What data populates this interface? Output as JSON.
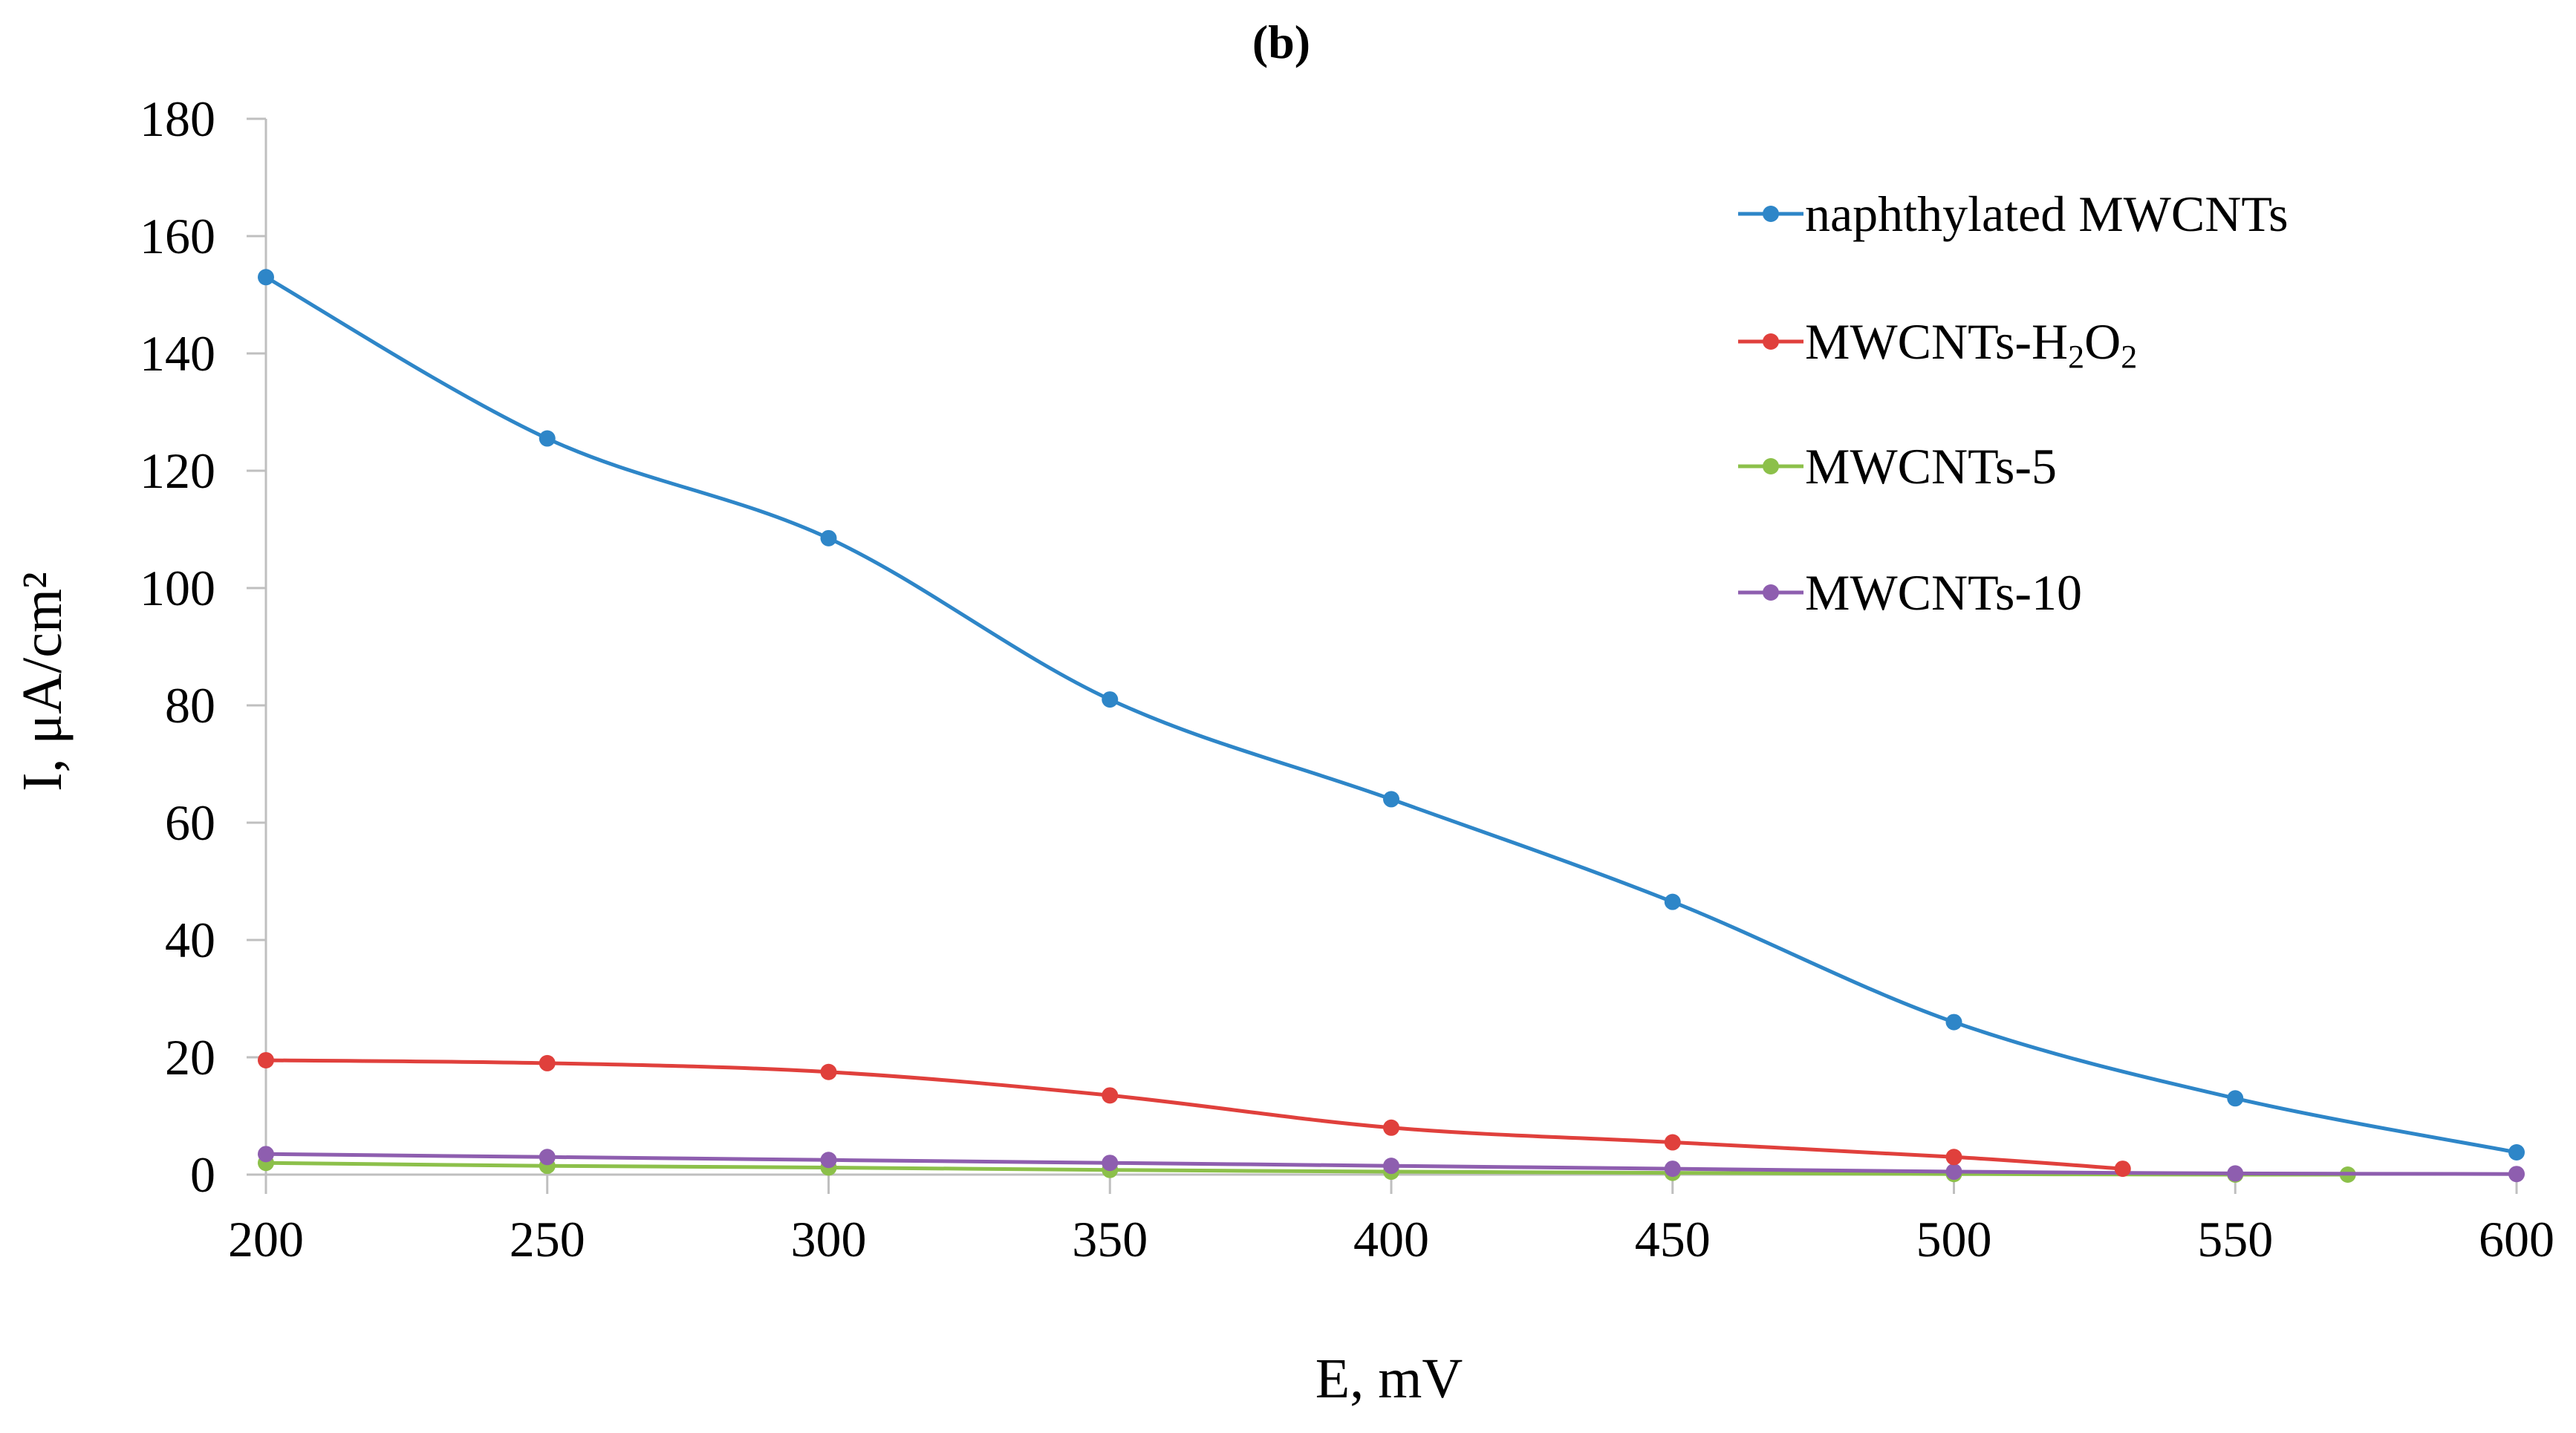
{
  "chart_data": {
    "type": "line",
    "title": "(b)",
    "xlabel": "E, mV",
    "ylabel": "I, μA/cm²",
    "xlim": [
      200,
      600
    ],
    "ylim": [
      0,
      180
    ],
    "x_ticks": [
      200,
      250,
      300,
      350,
      400,
      450,
      500,
      550,
      600
    ],
    "y_ticks": [
      0,
      20,
      40,
      60,
      80,
      100,
      120,
      140,
      160,
      180
    ],
    "grid": false,
    "legend_position": "top-right",
    "series": [
      {
        "name": "naphthylated MWCNTs",
        "color": "#2E86C8",
        "x": [
          200,
          250,
          300,
          350,
          400,
          450,
          500,
          550,
          600
        ],
        "y": [
          153,
          125.5,
          108.5,
          81,
          64,
          46.5,
          26,
          13,
          3.8
        ]
      },
      {
        "name": "MWCNTs-H2O2",
        "label_main": "MWCNTs-H",
        "label_sub1": "2",
        "label_mid": "O",
        "label_sub2": "2",
        "color": "#E0403C",
        "x": [
          200,
          250,
          300,
          350,
          400,
          450,
          500,
          530
        ],
        "y": [
          19.5,
          19,
          17.5,
          13.5,
          8,
          5.5,
          3,
          1
        ]
      },
      {
        "name": "MWCNTs-5",
        "color": "#8CC04A",
        "x": [
          200,
          250,
          300,
          350,
          400,
          450,
          500,
          550,
          570
        ],
        "y": [
          2,
          1.5,
          1.2,
          0.8,
          0.5,
          0.3,
          0.1,
          0,
          0
        ]
      },
      {
        "name": "MWCNTs-10",
        "color": "#8E5EAF",
        "x": [
          200,
          250,
          300,
          350,
          400,
          450,
          500,
          550,
          600
        ],
        "y": [
          3.5,
          3,
          2.5,
          2,
          1.5,
          1,
          0.5,
          0.2,
          0.1
        ]
      }
    ]
  }
}
